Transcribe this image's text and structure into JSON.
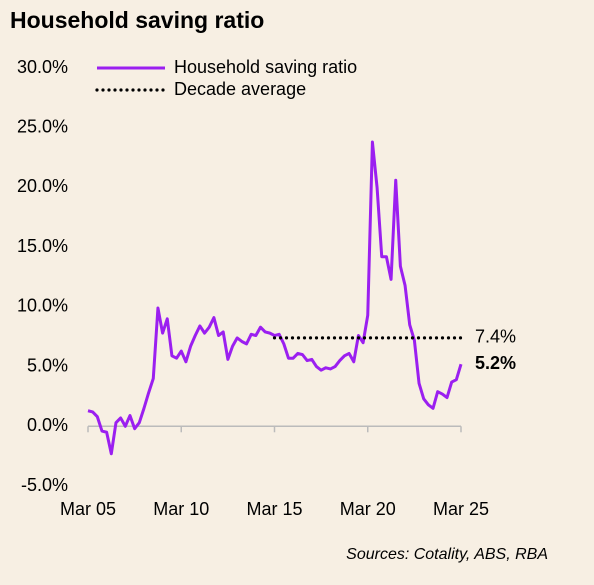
{
  "chart_data": {
    "type": "line",
    "title": "Household saving ratio",
    "source": "Sources:  Cotality, ABS, RBA",
    "categories": [
      "Mar 05",
      null,
      null,
      null,
      null,
      null,
      null,
      null,
      null,
      null,
      null,
      null,
      null,
      null,
      null,
      null,
      null,
      null,
      null,
      null,
      "Mar 10",
      null,
      null,
      null,
      null,
      null,
      null,
      null,
      null,
      null,
      null,
      null,
      null,
      null,
      null,
      null,
      null,
      null,
      null,
      null,
      "Mar 15",
      null,
      null,
      null,
      null,
      null,
      null,
      null,
      null,
      null,
      null,
      null,
      null,
      null,
      null,
      null,
      null,
      null,
      null,
      null,
      "Mar 20",
      null,
      null,
      null,
      null,
      null,
      null,
      null,
      null,
      null,
      null,
      null,
      null,
      null,
      null,
      null,
      null,
      null,
      null,
      null,
      "Mar 25"
    ],
    "series": [
      {
        "name": "Household saving ratio",
        "color": "#9b1ff0",
        "style": "solid",
        "values": [
          1.3,
          1.2,
          0.8,
          -0.4,
          -0.5,
          -2.3,
          0.3,
          0.7,
          0.0,
          0.9,
          -0.2,
          0.3,
          1.5,
          2.8,
          4.0,
          9.9,
          7.8,
          9.0,
          5.9,
          5.7,
          6.3,
          5.4,
          6.7,
          7.6,
          8.4,
          7.8,
          8.3,
          9.1,
          7.6,
          7.9,
          5.6,
          6.7,
          7.4,
          7.1,
          6.9,
          7.7,
          7.6,
          8.3,
          7.9,
          7.8,
          7.6,
          7.7,
          6.9,
          5.7,
          5.7,
          6.1,
          6.0,
          5.5,
          5.6,
          5.0,
          4.7,
          4.9,
          4.8,
          5.0,
          5.5,
          5.9,
          6.1,
          5.4,
          7.6,
          7.0,
          9.3,
          23.8,
          20.0,
          14.2,
          14.2,
          12.3,
          20.6,
          13.4,
          11.8,
          8.5,
          7.2,
          3.6,
          2.3,
          1.8,
          1.5,
          2.9,
          2.7,
          2.4,
          3.7,
          3.9,
          5.2
        ],
        "value_labels": [
          null,
          null,
          null,
          null,
          null,
          null,
          null,
          null,
          null,
          null,
          null,
          null,
          null,
          null,
          null,
          null,
          null,
          null,
          null,
          null,
          null,
          null,
          null,
          null,
          null,
          null,
          null,
          null,
          null,
          null,
          null,
          null,
          null,
          null,
          null,
          null,
          null,
          null,
          null,
          null,
          null,
          null,
          null,
          null,
          null,
          null,
          null,
          null,
          null,
          null,
          null,
          null,
          null,
          null,
          null,
          null,
          null,
          null,
          null,
          null,
          null,
          null,
          null,
          null,
          null,
          null,
          null,
          null,
          null,
          null,
          null,
          null,
          null,
          null,
          null,
          null,
          null,
          null,
          null,
          null,
          "5.2%"
        ]
      },
      {
        "name": "Decade average",
        "color": "#000000",
        "style": "dotted",
        "values": [
          null,
          null,
          null,
          null,
          null,
          null,
          null,
          null,
          null,
          null,
          null,
          null,
          null,
          null,
          null,
          null,
          null,
          null,
          null,
          null,
          null,
          null,
          null,
          null,
          null,
          null,
          null,
          null,
          null,
          null,
          null,
          null,
          null,
          null,
          null,
          null,
          null,
          null,
          null,
          null,
          7.4,
          7.4,
          7.4,
          7.4,
          7.4,
          7.4,
          7.4,
          7.4,
          7.4,
          7.4,
          7.4,
          7.4,
          7.4,
          7.4,
          7.4,
          7.4,
          7.4,
          7.4,
          7.4,
          7.4,
          7.4,
          7.4,
          7.4,
          7.4,
          7.4,
          7.4,
          7.4,
          7.4,
          7.4,
          7.4,
          7.4,
          7.4,
          7.4,
          7.4,
          7.4,
          7.4,
          7.4,
          7.4,
          7.4,
          7.4,
          7.4
        ],
        "value_labels": [
          null,
          null,
          null,
          null,
          null,
          null,
          null,
          null,
          null,
          null,
          null,
          null,
          null,
          null,
          null,
          null,
          null,
          null,
          null,
          null,
          null,
          null,
          null,
          null,
          null,
          null,
          null,
          null,
          null,
          null,
          null,
          null,
          null,
          null,
          null,
          null,
          null,
          null,
          null,
          null,
          null,
          null,
          null,
          null,
          null,
          null,
          null,
          null,
          null,
          null,
          null,
          null,
          null,
          null,
          null,
          null,
          null,
          null,
          null,
          null,
          null,
          null,
          null,
          null,
          null,
          null,
          null,
          null,
          null,
          null,
          null,
          null,
          null,
          null,
          null,
          null,
          null,
          null,
          null,
          null,
          "7.4%"
        ]
      }
    ],
    "ylim": [
      -5,
      30
    ],
    "yticks": [
      {
        "value": -5,
        "label": "-5.0%"
      },
      {
        "value": 0,
        "label": "0.0%"
      },
      {
        "value": 5,
        "label": "5.0%"
      },
      {
        "value": 10,
        "label": "10.0%"
      },
      {
        "value": 15,
        "label": "15.0%"
      },
      {
        "value": 20,
        "label": "20.0%"
      },
      {
        "value": 25,
        "label": "25.0%"
      },
      {
        "value": 30,
        "label": "30.0%"
      }
    ],
    "grid": false
  }
}
